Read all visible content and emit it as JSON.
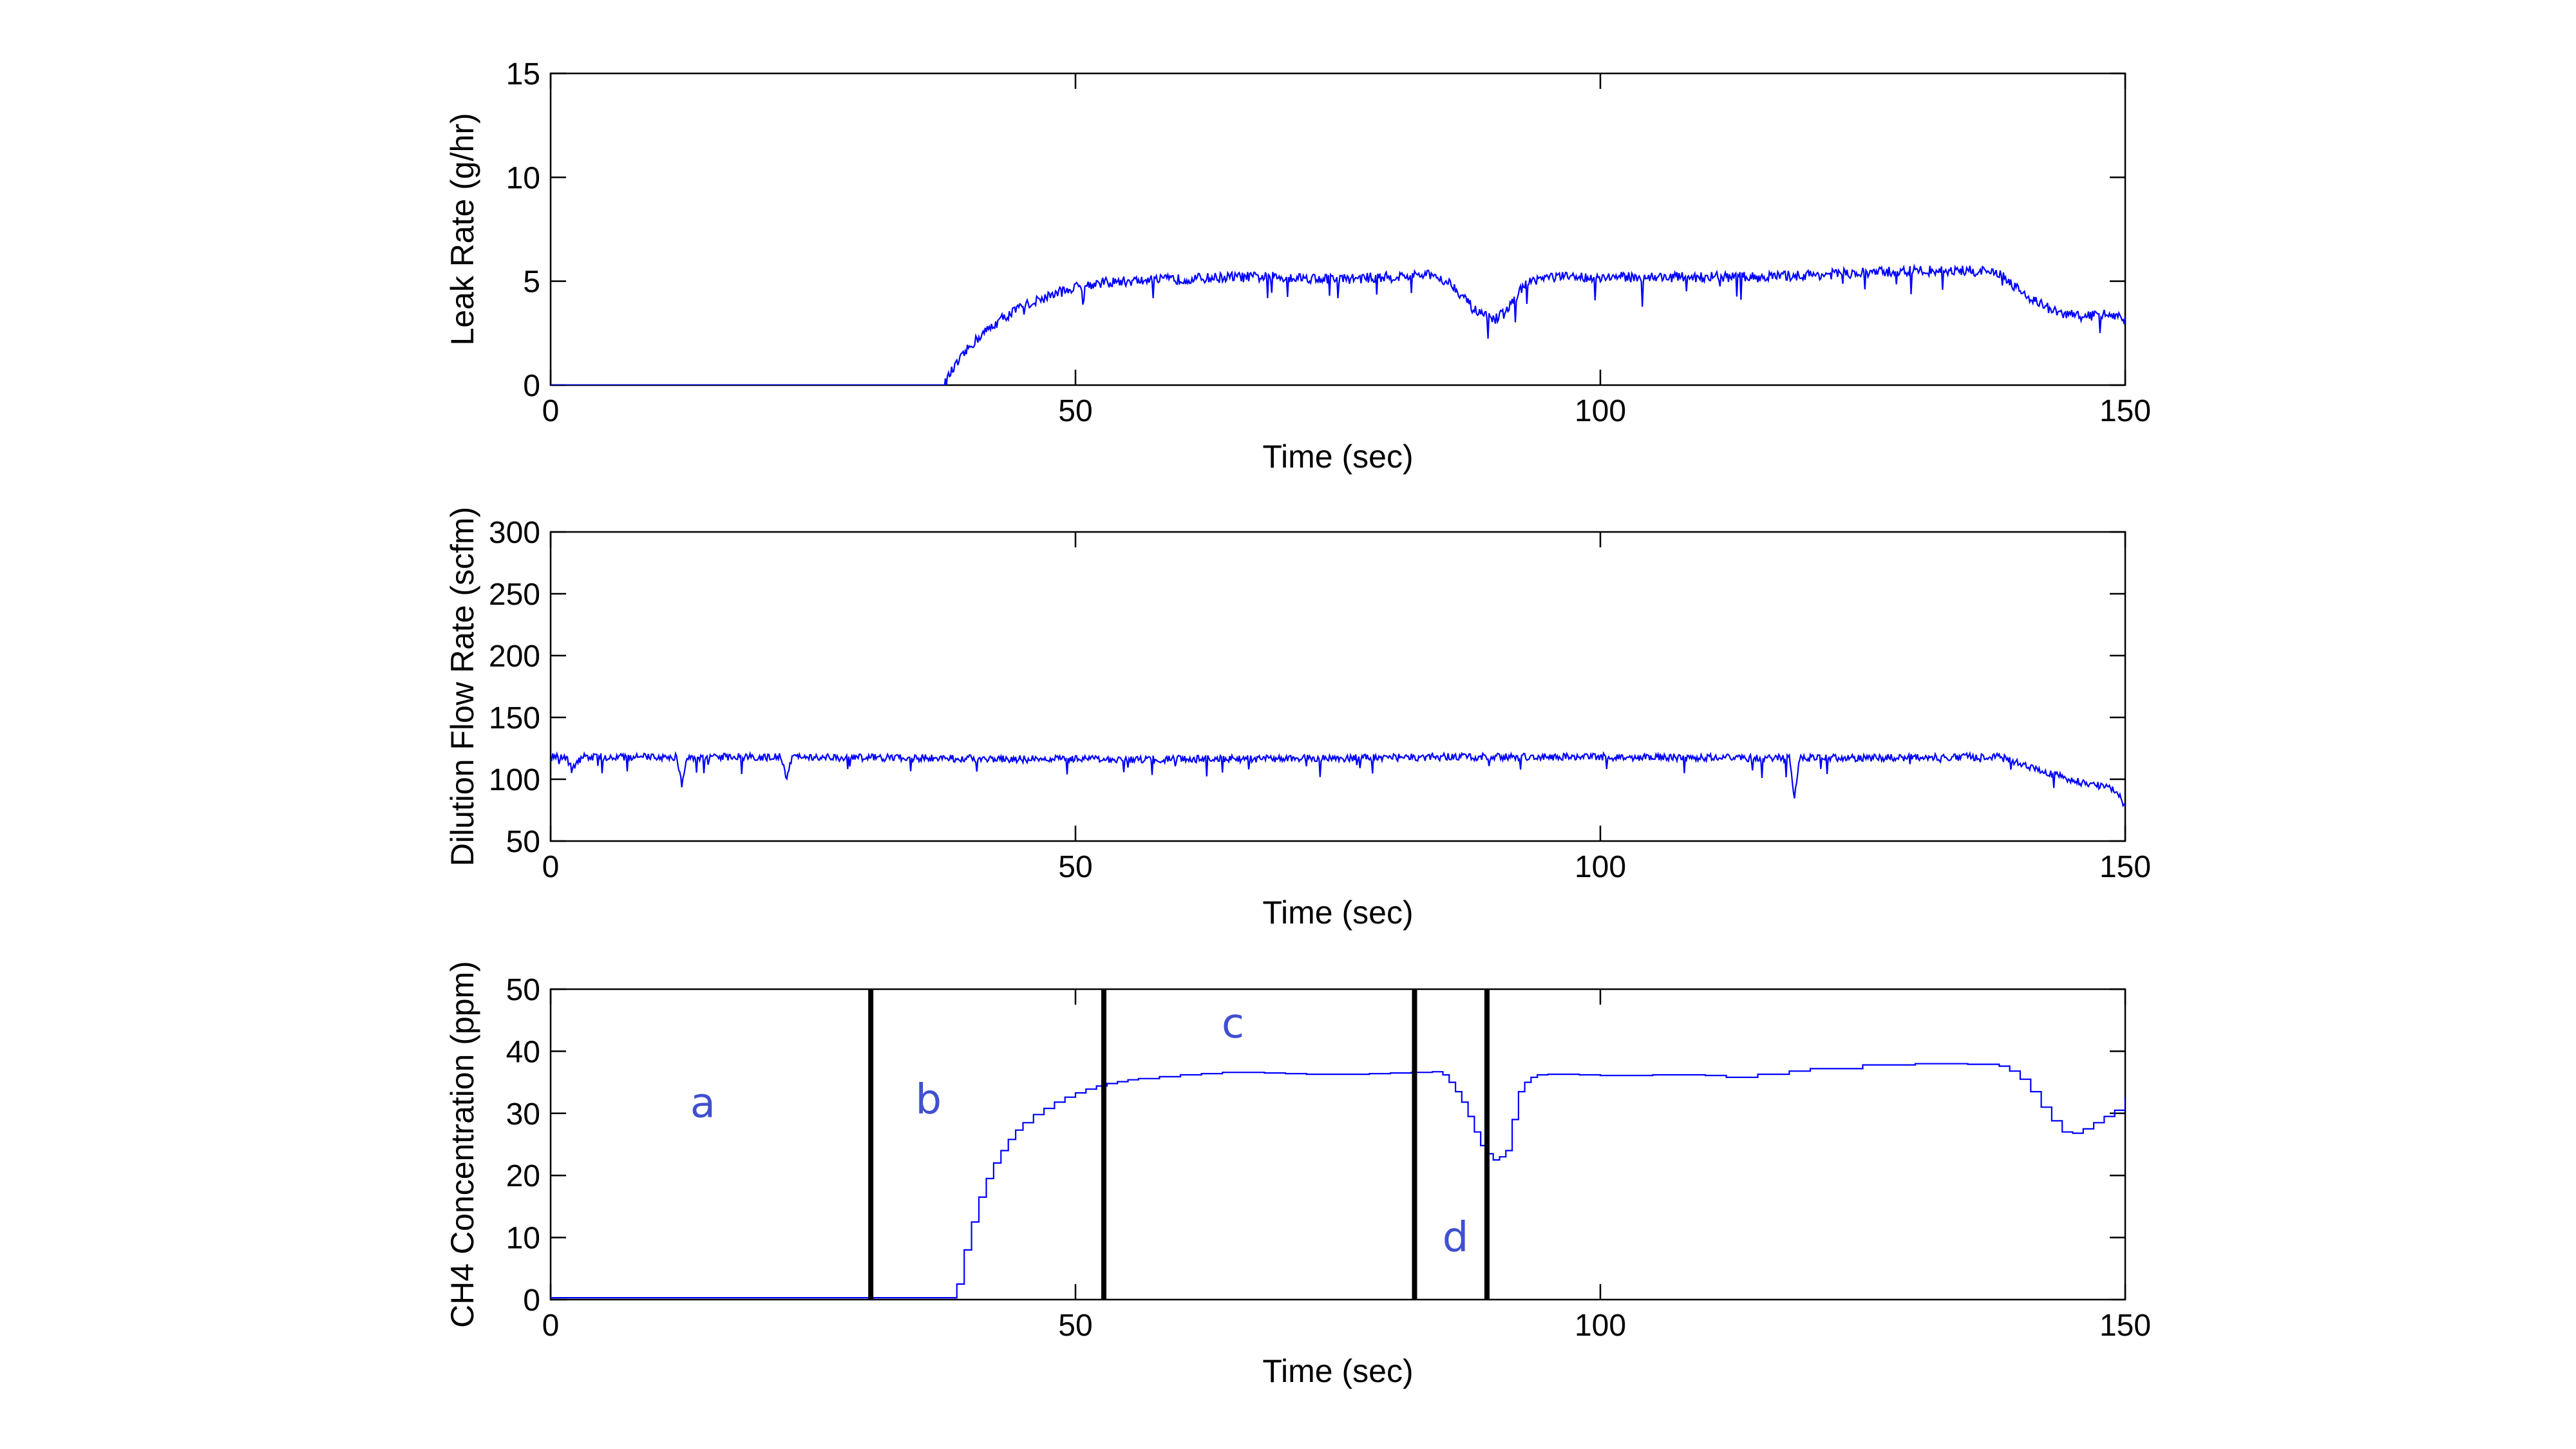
{
  "chart_data": [
    {
      "type": "line",
      "title": "",
      "xlabel": "Time (sec)",
      "ylabel": "Leak Rate (g/hr)",
      "xlim": [
        0,
        150
      ],
      "ylim": [
        0,
        15
      ],
      "xticks": [
        0,
        50,
        100,
        150
      ],
      "yticks": [
        0,
        5,
        10,
        15
      ],
      "grid": false,
      "noise": 0.25,
      "series": [
        {
          "color": "#0000ff",
          "x": [
            0,
            37.5,
            38,
            39,
            40,
            41,
            42,
            43,
            44,
            45,
            46,
            47,
            48,
            50,
            52,
            55,
            60,
            65,
            70,
            75,
            80,
            84,
            85,
            86,
            87,
            88,
            89,
            90,
            91,
            92,
            93,
            94,
            95,
            97,
            100,
            105,
            110,
            115,
            120,
            125,
            130,
            135,
            138,
            139,
            140,
            141,
            142,
            143,
            144,
            145,
            146,
            148,
            149,
            150
          ],
          "y": [
            0,
            0,
            0.5,
            1.2,
            1.9,
            2.4,
            2.8,
            3.2,
            3.5,
            3.8,
            4.0,
            4.2,
            4.4,
            4.7,
            4.9,
            5.0,
            5.1,
            5.2,
            5.2,
            5.1,
            5.2,
            5.3,
            5.1,
            4.8,
            4.2,
            3.6,
            3.3,
            3.2,
            3.5,
            4.3,
            4.9,
            5.1,
            5.2,
            5.2,
            5.2,
            5.2,
            5.2,
            5.2,
            5.3,
            5.4,
            5.5,
            5.5,
            5.4,
            5.0,
            4.5,
            4.2,
            3.9,
            3.6,
            3.4,
            3.4,
            3.3,
            3.4,
            3.4,
            3.1
          ]
        }
      ]
    },
    {
      "type": "line",
      "title": "",
      "xlabel": "Time (sec)",
      "ylabel": "Dilution Flow Rate (scfm)",
      "xlim": [
        0,
        150
      ],
      "ylim": [
        50,
        300
      ],
      "xticks": [
        0,
        50,
        100,
        150
      ],
      "yticks": [
        50,
        100,
        150,
        200,
        250,
        300
      ],
      "grid": false,
      "noise": 3,
      "series": [
        {
          "color": "#0000ff",
          "x": [
            0,
            1.5,
            2,
            3,
            12,
            12.5,
            13,
            22,
            22.5,
            23,
            50,
            75,
            85,
            100,
            118,
            118.5,
            119,
            135,
            138,
            140,
            142,
            144,
            146,
            148,
            149,
            149.5,
            150
          ],
          "y": [
            118,
            118,
            108,
            118,
            118,
            95,
            118,
            118,
            100,
            118,
            116,
            117,
            118,
            118,
            117,
            84,
            117,
            118,
            118,
            113,
            106,
            102,
            97,
            94,
            91,
            88,
            76
          ]
        }
      ]
    },
    {
      "type": "line",
      "title": "",
      "xlabel": "Time (sec)",
      "ylabel": "CH4 Concentration (ppm)",
      "xlim": [
        0,
        150
      ],
      "ylim": [
        0,
        50
      ],
      "xticks": [
        0,
        50,
        100,
        150
      ],
      "yticks": [
        0,
        10,
        20,
        30,
        40,
        50
      ],
      "grid": false,
      "noise": 0,
      "series": [
        {
          "color": "#0000ff",
          "x": [
            0,
            38,
            38.7,
            39.4,
            40.1,
            40.8,
            41.5,
            42.2,
            42.9,
            43.6,
            44.3,
            45,
            46,
            47,
            48,
            49,
            50,
            51,
            52,
            53,
            54,
            55,
            56,
            58,
            60,
            62,
            64,
            66,
            68,
            70,
            72,
            74,
            76,
            78,
            80,
            82,
            84,
            85,
            85.6,
            86.2,
            86.8,
            87.4,
            88,
            88.6,
            89.2,
            89.8,
            90.4,
            91,
            91.6,
            92.2,
            92.8,
            93.4,
            94,
            95,
            96,
            98,
            100,
            105,
            110,
            112,
            115,
            118,
            120,
            125,
            130,
            135,
            138,
            139,
            140,
            141,
            142,
            143,
            144,
            145,
            146,
            147,
            148,
            149,
            150
          ],
          "y": [
            0.3,
            0.3,
            2.5,
            8,
            12.5,
            16.5,
            19.5,
            22,
            24,
            25.8,
            27.3,
            28.5,
            29.8,
            30.8,
            31.8,
            32.6,
            33.3,
            33.9,
            34.4,
            34.8,
            35.1,
            35.4,
            35.6,
            35.9,
            36.2,
            36.4,
            36.6,
            36.6,
            36.5,
            36.4,
            36.3,
            36.3,
            36.3,
            36.4,
            36.5,
            36.6,
            36.7,
            36.2,
            35,
            33.5,
            31.8,
            29.5,
            27,
            24.8,
            23.5,
            22.5,
            23,
            24,
            29,
            33.5,
            35,
            35.8,
            36.2,
            36.3,
            36.3,
            36.2,
            36.1,
            36.2,
            36.1,
            35.8,
            36.3,
            36.8,
            37.2,
            37.8,
            38,
            37.9,
            37.6,
            36.8,
            35.5,
            33.5,
            31,
            28.8,
            27,
            26.8,
            27.5,
            28.5,
            29.5,
            30.5,
            32.5
          ]
        }
      ],
      "vlines": [
        30.5,
        52.7,
        82.3,
        89.2
      ],
      "annotations": [
        {
          "text": "a",
          "x": 14.5,
          "y": 29.4
        },
        {
          "text": "b",
          "x": 36,
          "y": 30.0
        },
        {
          "text": "c",
          "x": 65,
          "y": 42.2
        },
        {
          "text": "d",
          "x": 86.2,
          "y": 7.8
        }
      ],
      "annotation_color": "#4050d0"
    }
  ]
}
